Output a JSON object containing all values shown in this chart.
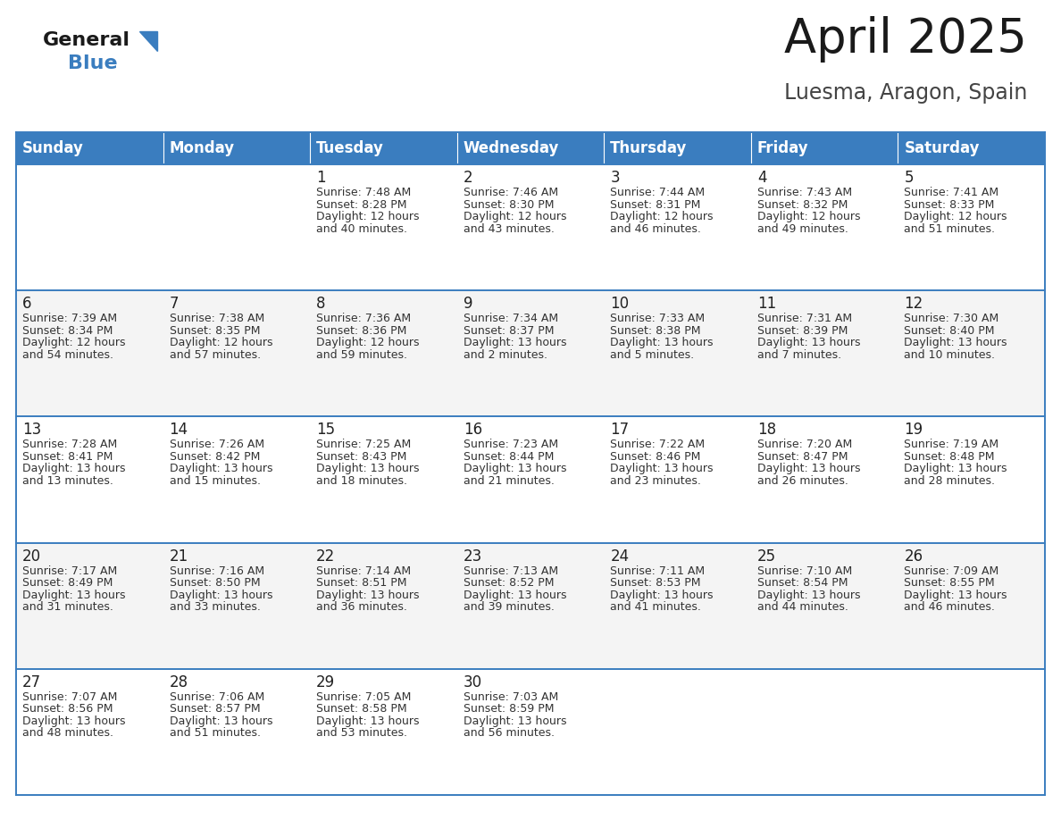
{
  "title": "April 2025",
  "subtitle": "Luesma, Aragon, Spain",
  "header_color": "#3a7dbf",
  "header_text_color": "#ffffff",
  "border_color": "#3a7dbf",
  "day_headers": [
    "Sunday",
    "Monday",
    "Tuesday",
    "Wednesday",
    "Thursday",
    "Friday",
    "Saturday"
  ],
  "calendar": [
    [
      {
        "day": "",
        "sunrise": "",
        "sunset": "",
        "daylight": ""
      },
      {
        "day": "",
        "sunrise": "",
        "sunset": "",
        "daylight": ""
      },
      {
        "day": "1",
        "sunrise": "7:48 AM",
        "sunset": "8:28 PM",
        "daylight": "12 hours and 40 minutes."
      },
      {
        "day": "2",
        "sunrise": "7:46 AM",
        "sunset": "8:30 PM",
        "daylight": "12 hours and 43 minutes."
      },
      {
        "day": "3",
        "sunrise": "7:44 AM",
        "sunset": "8:31 PM",
        "daylight": "12 hours and 46 minutes."
      },
      {
        "day": "4",
        "sunrise": "7:43 AM",
        "sunset": "8:32 PM",
        "daylight": "12 hours and 49 minutes."
      },
      {
        "day": "5",
        "sunrise": "7:41 AM",
        "sunset": "8:33 PM",
        "daylight": "12 hours and 51 minutes."
      }
    ],
    [
      {
        "day": "6",
        "sunrise": "7:39 AM",
        "sunset": "8:34 PM",
        "daylight": "12 hours and 54 minutes."
      },
      {
        "day": "7",
        "sunrise": "7:38 AM",
        "sunset": "8:35 PM",
        "daylight": "12 hours and 57 minutes."
      },
      {
        "day": "8",
        "sunrise": "7:36 AM",
        "sunset": "8:36 PM",
        "daylight": "12 hours and 59 minutes."
      },
      {
        "day": "9",
        "sunrise": "7:34 AM",
        "sunset": "8:37 PM",
        "daylight": "13 hours and 2 minutes."
      },
      {
        "day": "10",
        "sunrise": "7:33 AM",
        "sunset": "8:38 PM",
        "daylight": "13 hours and 5 minutes."
      },
      {
        "day": "11",
        "sunrise": "7:31 AM",
        "sunset": "8:39 PM",
        "daylight": "13 hours and 7 minutes."
      },
      {
        "day": "12",
        "sunrise": "7:30 AM",
        "sunset": "8:40 PM",
        "daylight": "13 hours and 10 minutes."
      }
    ],
    [
      {
        "day": "13",
        "sunrise": "7:28 AM",
        "sunset": "8:41 PM",
        "daylight": "13 hours and 13 minutes."
      },
      {
        "day": "14",
        "sunrise": "7:26 AM",
        "sunset": "8:42 PM",
        "daylight": "13 hours and 15 minutes."
      },
      {
        "day": "15",
        "sunrise": "7:25 AM",
        "sunset": "8:43 PM",
        "daylight": "13 hours and 18 minutes."
      },
      {
        "day": "16",
        "sunrise": "7:23 AM",
        "sunset": "8:44 PM",
        "daylight": "13 hours and 21 minutes."
      },
      {
        "day": "17",
        "sunrise": "7:22 AM",
        "sunset": "8:46 PM",
        "daylight": "13 hours and 23 minutes."
      },
      {
        "day": "18",
        "sunrise": "7:20 AM",
        "sunset": "8:47 PM",
        "daylight": "13 hours and 26 minutes."
      },
      {
        "day": "19",
        "sunrise": "7:19 AM",
        "sunset": "8:48 PM",
        "daylight": "13 hours and 28 minutes."
      }
    ],
    [
      {
        "day": "20",
        "sunrise": "7:17 AM",
        "sunset": "8:49 PM",
        "daylight": "13 hours and 31 minutes."
      },
      {
        "day": "21",
        "sunrise": "7:16 AM",
        "sunset": "8:50 PM",
        "daylight": "13 hours and 33 minutes."
      },
      {
        "day": "22",
        "sunrise": "7:14 AM",
        "sunset": "8:51 PM",
        "daylight": "13 hours and 36 minutes."
      },
      {
        "day": "23",
        "sunrise": "7:13 AM",
        "sunset": "8:52 PM",
        "daylight": "13 hours and 39 minutes."
      },
      {
        "day": "24",
        "sunrise": "7:11 AM",
        "sunset": "8:53 PM",
        "daylight": "13 hours and 41 minutes."
      },
      {
        "day": "25",
        "sunrise": "7:10 AM",
        "sunset": "8:54 PM",
        "daylight": "13 hours and 44 minutes."
      },
      {
        "day": "26",
        "sunrise": "7:09 AM",
        "sunset": "8:55 PM",
        "daylight": "13 hours and 46 minutes."
      }
    ],
    [
      {
        "day": "27",
        "sunrise": "7:07 AM",
        "sunset": "8:56 PM",
        "daylight": "13 hours and 48 minutes."
      },
      {
        "day": "28",
        "sunrise": "7:06 AM",
        "sunset": "8:57 PM",
        "daylight": "13 hours and 51 minutes."
      },
      {
        "day": "29",
        "sunrise": "7:05 AM",
        "sunset": "8:58 PM",
        "daylight": "13 hours and 53 minutes."
      },
      {
        "day": "30",
        "sunrise": "7:03 AM",
        "sunset": "8:59 PM",
        "daylight": "13 hours and 56 minutes."
      },
      {
        "day": "",
        "sunrise": "",
        "sunset": "",
        "daylight": ""
      },
      {
        "day": "",
        "sunrise": "",
        "sunset": "",
        "daylight": ""
      },
      {
        "day": "",
        "sunrise": "",
        "sunset": "",
        "daylight": ""
      }
    ]
  ],
  "logo_general_color": "#1a1a1a",
  "logo_blue_color": "#3a7dbf",
  "title_fontsize": 38,
  "subtitle_fontsize": 17,
  "header_fontsize": 12,
  "day_num_fontsize": 12,
  "info_fontsize": 9.0,
  "fig_width": 11.88,
  "fig_height": 9.18,
  "dpi": 100
}
